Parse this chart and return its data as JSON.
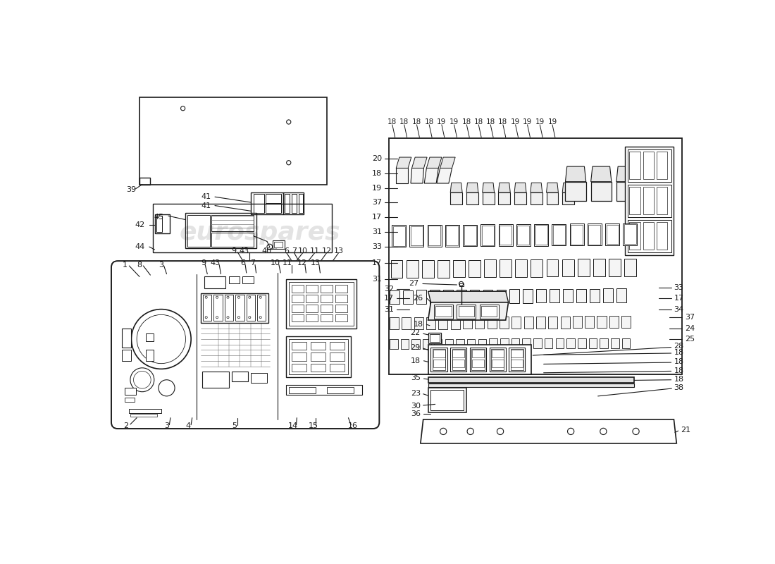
{
  "background_color": "#ffffff",
  "line_color": "#1a1a1a",
  "fig_width": 11.0,
  "fig_height": 8.0,
  "dpi": 100,
  "watermark": "eurospares"
}
